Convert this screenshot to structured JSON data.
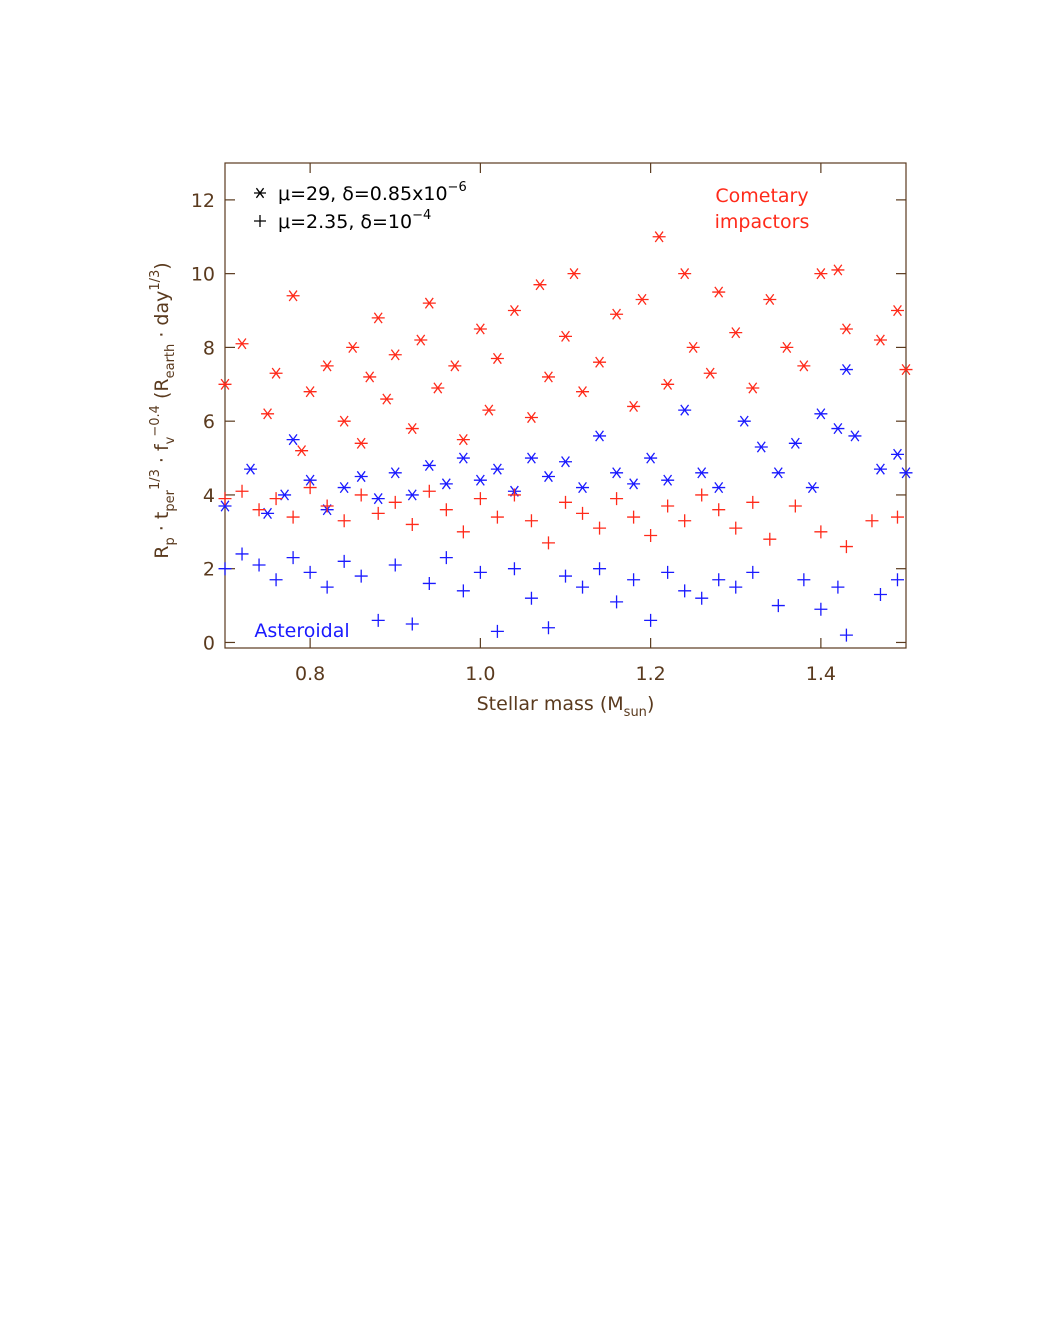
{
  "chart_data": {
    "type": "scatter",
    "x_label": [
      {
        "text": "Stellar mass (M",
        "style": "base"
      },
      {
        "text": "sun",
        "style": "sub"
      },
      {
        "text": ")",
        "style": "base"
      }
    ],
    "y_label": [
      {
        "text": "R",
        "style": "base"
      },
      {
        "text": "p",
        "style": "sub"
      },
      {
        "text": " · t",
        "style": "base"
      },
      {
        "text": "per",
        "style": "sub"
      },
      {
        "text": "1/3",
        "style": "sup"
      },
      {
        "text": " · f",
        "style": "base"
      },
      {
        "text": "v",
        "style": "sub"
      },
      {
        "text": "−0.4",
        "style": "sup"
      },
      {
        "text": "  (R",
        "style": "base"
      },
      {
        "text": "earth",
        "style": "sub"
      },
      {
        "text": " · day",
        "style": "base"
      },
      {
        "text": "1/3",
        "style": "sup"
      },
      {
        "text": ")",
        "style": "base"
      }
    ],
    "legend": [
      {
        "marker": "asterisk",
        "label": "μ=29, δ=0.85x10",
        "sup": "−6"
      },
      {
        "marker": "plus",
        "label": "μ=2.35, δ=10",
        "sup": "−4"
      }
    ],
    "annotations": [
      {
        "lines": [
          "Cometary",
          "impactors"
        ],
        "color": "#ff2a1a"
      },
      {
        "lines": [
          "Asteroidal"
        ],
        "color": "#1a1aff"
      }
    ],
    "xlim": [
      0.7,
      1.5
    ],
    "ylim": [
      -0.15,
      13
    ],
    "xticks": [
      0.8,
      {
        "value": 1.0,
        "label": "1.0"
      },
      1.2,
      1.4
    ],
    "yticks": [
      0,
      2,
      4,
      6,
      8,
      10,
      12
    ],
    "series": [
      {
        "color": "#ff2a1a",
        "marker": "asterisk",
        "x": [
          0.7,
          0.72,
          0.75,
          0.76,
          0.78,
          0.79,
          0.8,
          0.82,
          0.84,
          0.85,
          0.86,
          0.87,
          0.88,
          0.89,
          0.9,
          0.92,
          0.93,
          0.94,
          0.95,
          0.97,
          0.98,
          1.0,
          1.01,
          1.02,
          1.04,
          1.06,
          1.07,
          1.08,
          1.1,
          1.11,
          1.12,
          1.14,
          1.16,
          1.18,
          1.19,
          1.21,
          1.22,
          1.24,
          1.25,
          1.27,
          1.28,
          1.3,
          1.32,
          1.34,
          1.36,
          1.38,
          1.4,
          1.42,
          1.43,
          1.47,
          1.49,
          1.5
        ],
        "values": [
          7.0,
          8.1,
          6.2,
          7.3,
          9.4,
          5.2,
          6.8,
          7.5,
          6.0,
          8.0,
          5.4,
          7.2,
          8.8,
          6.6,
          7.8,
          5.8,
          8.2,
          9.2,
          6.9,
          7.5,
          5.5,
          8.5,
          6.3,
          7.7,
          9.0,
          6.1,
          9.7,
          7.2,
          8.3,
          10.0,
          6.8,
          7.6,
          8.9,
          6.4,
          9.3,
          11.0,
          7.0,
          10.0,
          8.0,
          7.3,
          9.5,
          8.4,
          6.9,
          9.3,
          8.0,
          7.5,
          10.0,
          10.1,
          8.5,
          8.2,
          9.0,
          7.4
        ]
      },
      {
        "color": "#1a1aff",
        "marker": "asterisk",
        "x": [
          0.7,
          0.73,
          0.75,
          0.77,
          0.78,
          0.8,
          0.82,
          0.84,
          0.86,
          0.88,
          0.9,
          0.92,
          0.94,
          0.96,
          0.98,
          1.0,
          1.02,
          1.04,
          1.06,
          1.08,
          1.1,
          1.12,
          1.14,
          1.16,
          1.18,
          1.2,
          1.22,
          1.24,
          1.26,
          1.28,
          1.31,
          1.33,
          1.35,
          1.37,
          1.39,
          1.4,
          1.42,
          1.43,
          1.44,
          1.47,
          1.49,
          1.5
        ],
        "values": [
          3.7,
          4.7,
          3.5,
          4.0,
          5.5,
          4.4,
          3.6,
          4.2,
          4.5,
          3.9,
          4.6,
          4.0,
          4.8,
          4.3,
          5.0,
          4.4,
          4.7,
          4.1,
          5.0,
          4.5,
          4.9,
          4.2,
          5.6,
          4.6,
          4.3,
          5.0,
          4.4,
          6.3,
          4.6,
          4.2,
          6.0,
          5.3,
          4.6,
          5.4,
          4.2,
          6.2,
          5.8,
          7.4,
          5.6,
          4.7,
          5.1,
          4.6
        ]
      },
      {
        "color": "#ff2a1a",
        "marker": "plus",
        "x": [
          0.7,
          0.72,
          0.74,
          0.76,
          0.78,
          0.8,
          0.82,
          0.84,
          0.86,
          0.88,
          0.9,
          0.92,
          0.94,
          0.96,
          0.98,
          1.0,
          1.02,
          1.04,
          1.06,
          1.08,
          1.1,
          1.12,
          1.14,
          1.16,
          1.18,
          1.2,
          1.22,
          1.24,
          1.26,
          1.28,
          1.3,
          1.32,
          1.34,
          1.37,
          1.4,
          1.43,
          1.46,
          1.49
        ],
        "values": [
          3.9,
          4.1,
          3.6,
          3.9,
          3.4,
          4.2,
          3.7,
          3.3,
          4.0,
          3.5,
          3.8,
          3.2,
          4.1,
          3.6,
          3.0,
          3.9,
          3.4,
          4.0,
          3.3,
          2.7,
          3.8,
          3.5,
          3.1,
          3.9,
          3.4,
          2.9,
          3.7,
          3.3,
          4.0,
          3.6,
          3.1,
          3.8,
          2.8,
          3.7,
          3.0,
          2.6,
          3.3,
          3.4
        ]
      },
      {
        "color": "#1a1aff",
        "marker": "plus",
        "x": [
          0.7,
          0.72,
          0.74,
          0.76,
          0.78,
          0.8,
          0.82,
          0.84,
          0.86,
          0.88,
          0.9,
          0.92,
          0.94,
          0.96,
          0.98,
          1.0,
          1.02,
          1.04,
          1.06,
          1.08,
          1.1,
          1.12,
          1.14,
          1.16,
          1.18,
          1.2,
          1.22,
          1.24,
          1.26,
          1.28,
          1.3,
          1.32,
          1.35,
          1.38,
          1.4,
          1.42,
          1.43,
          1.47,
          1.49
        ],
        "values": [
          2.0,
          2.4,
          2.1,
          1.7,
          2.3,
          1.9,
          1.5,
          2.2,
          1.8,
          0.6,
          2.1,
          0.5,
          1.6,
          2.3,
          1.4,
          1.9,
          0.3,
          2.0,
          1.2,
          0.4,
          1.8,
          1.5,
          2.0,
          1.1,
          1.7,
          0.6,
          1.9,
          1.4,
          1.2,
          1.7,
          1.5,
          1.9,
          1.0,
          1.7,
          0.9,
          1.5,
          0.2,
          1.3,
          1.7
        ]
      }
    ]
  }
}
